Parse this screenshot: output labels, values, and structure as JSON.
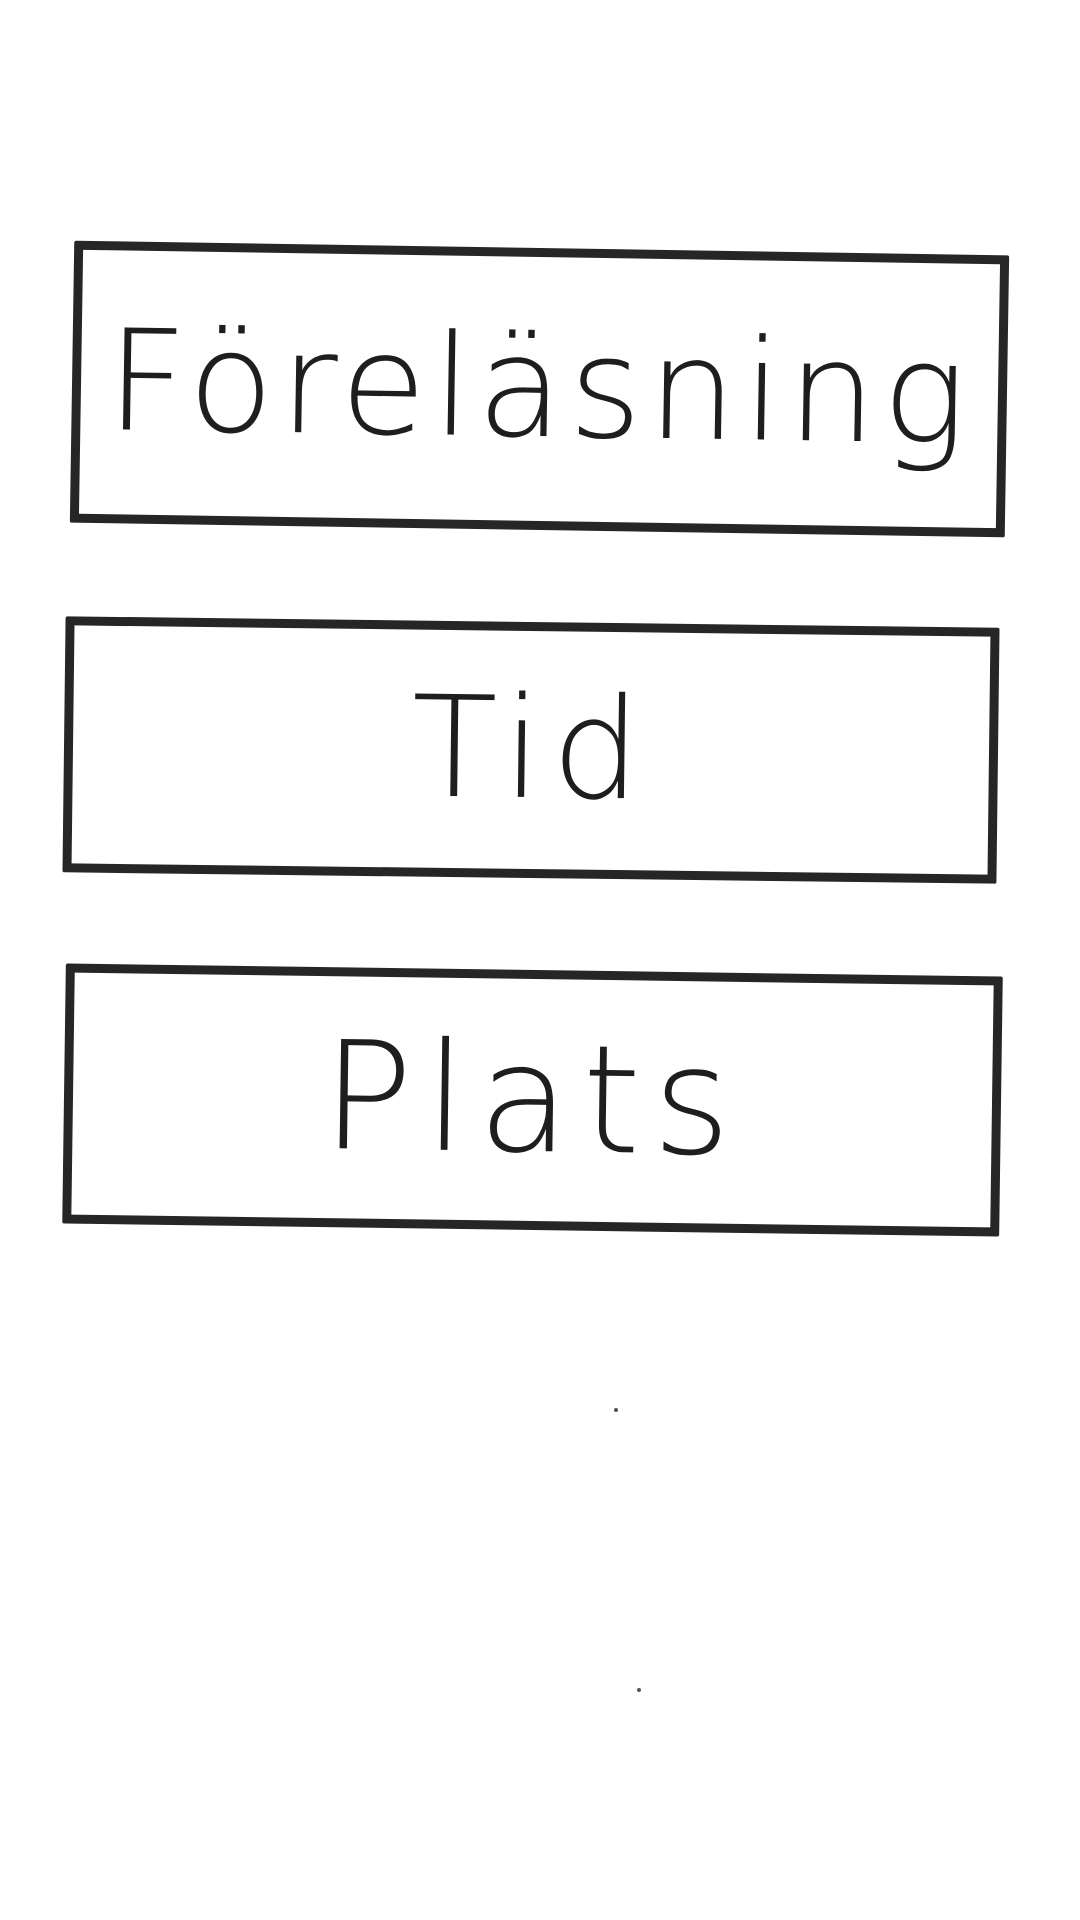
{
  "menu": {
    "items": [
      {
        "label": "Föreläsning"
      },
      {
        "label": "Tid"
      },
      {
        "label": "Plats"
      }
    ]
  },
  "colors": {
    "background": "#ffffff",
    "stroke": "#262626"
  }
}
